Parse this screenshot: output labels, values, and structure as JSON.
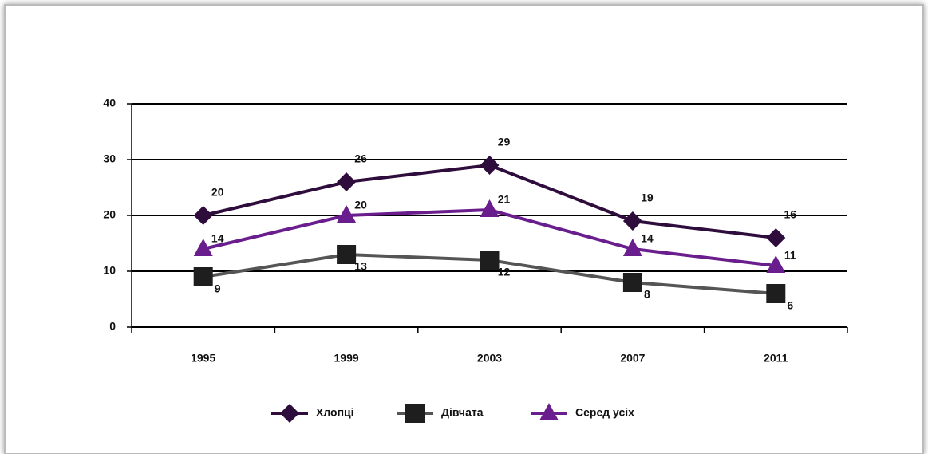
{
  "chart_data": {
    "type": "line",
    "categories": [
      "1995",
      "1999",
      "2003",
      "2007",
      "2011"
    ],
    "series": [
      {
        "name": "Хлопці",
        "color": "#2e0c3c",
        "line_color": "#2e0c3c",
        "marker": "diamond",
        "values": [
          20,
          26,
          29,
          19,
          16
        ]
      },
      {
        "name": "Дівчата",
        "color": "#1e1e1e",
        "line_color": "#555555",
        "marker": "square",
        "values": [
          9,
          13,
          12,
          8,
          6
        ]
      },
      {
        "name": "Серед усіх",
        "color": "#6a1d8c",
        "line_color": "#6a1d8c",
        "marker": "triangle",
        "values": [
          14,
          20,
          21,
          14,
          11
        ]
      }
    ],
    "ylim": [
      0,
      40
    ],
    "yticks": [
      0,
      10,
      20,
      30,
      40
    ],
    "grid": true,
    "legend": "bottom"
  }
}
